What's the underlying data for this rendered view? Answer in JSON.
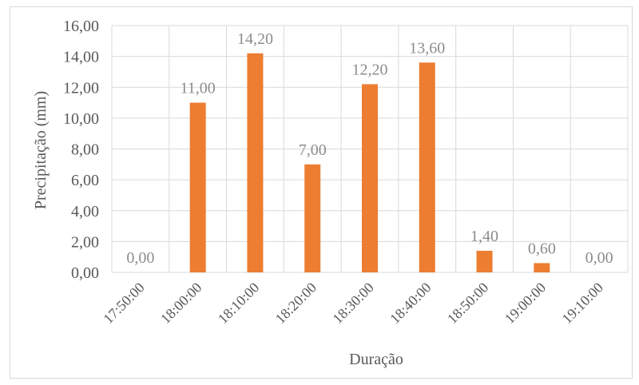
{
  "chart_data": {
    "type": "bar",
    "categories": [
      "17:50:00",
      "18:00:00",
      "18:10:00",
      "18:20:00",
      "18:30:00",
      "18:40:00",
      "18:50:00",
      "19:00:00",
      "19:10:00"
    ],
    "values": [
      0,
      11,
      14.2,
      7,
      12.2,
      13.6,
      1.4,
      0.6,
      0
    ],
    "data_labels": [
      "0,00",
      "11,00",
      "14,20",
      "7,00",
      "12,20",
      "13,60",
      "1,40",
      "0,60",
      "0,00"
    ],
    "y_ticks": [
      0,
      2,
      4,
      6,
      8,
      10,
      12,
      14,
      16
    ],
    "y_tick_labels": [
      "0,00",
      "2,00",
      "4,00",
      "6,00",
      "8,00",
      "10,00",
      "12,00",
      "14,00",
      "16,00"
    ],
    "ylim": [
      0,
      16
    ],
    "xlabel": "Duração",
    "ylabel": "Precipitação (mm)",
    "grid": true,
    "bar_color": "#ed7d31",
    "grid_color": "#d9d9d9"
  }
}
